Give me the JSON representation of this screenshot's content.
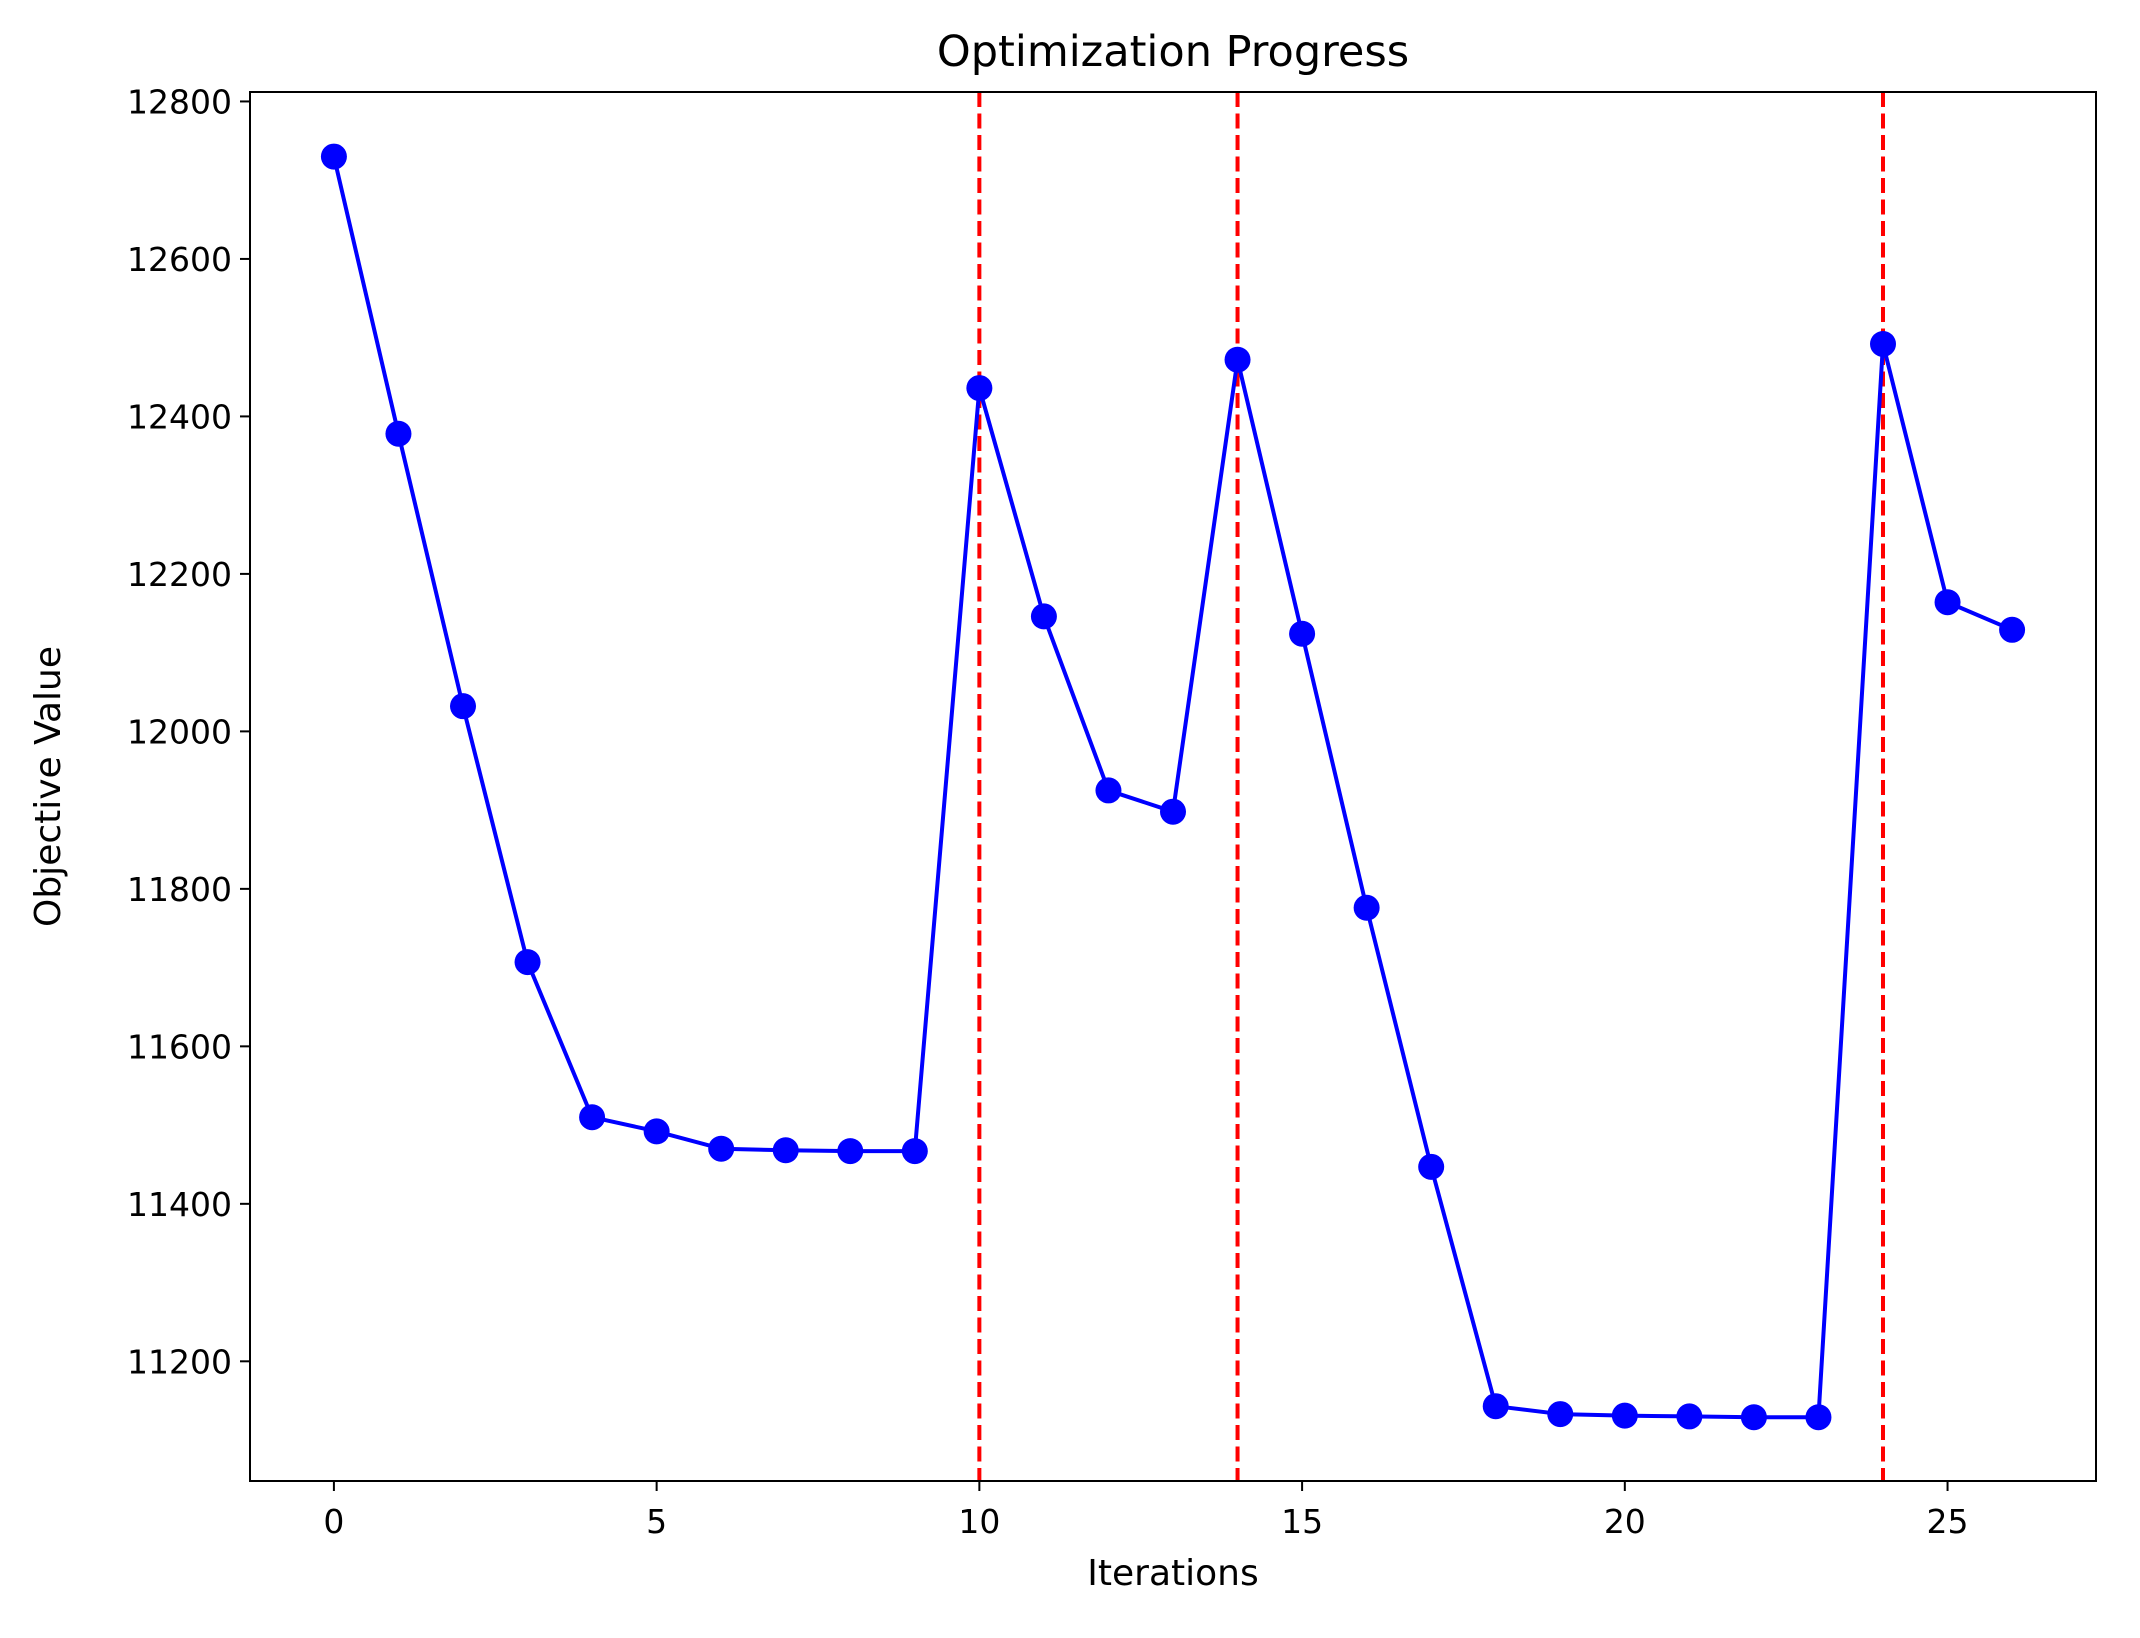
{
  "chart_data": {
    "type": "line",
    "title": "Optimization Progress",
    "xlabel": "Iterations",
    "ylabel": "Objective Value",
    "xlim": [
      -1.3,
      27.3
    ],
    "ylim": [
      11048,
      12812
    ],
    "xticks": [
      0,
      5,
      10,
      15,
      20,
      25
    ],
    "xtick_labels": [
      "0",
      "5",
      "10",
      "15",
      "20",
      "25"
    ],
    "yticks": [
      11200,
      11400,
      11600,
      11800,
      12000,
      12200,
      12400,
      12600,
      12800
    ],
    "ytick_labels": [
      "11200",
      "11400",
      "11600",
      "11800",
      "12000",
      "12200",
      "12400",
      "12600",
      "12800"
    ],
    "grid": false,
    "series": [
      {
        "color": "#0000ff",
        "marker": "circle",
        "x": [
          0,
          1,
          2,
          3,
          4,
          5,
          6,
          7,
          8,
          9,
          10,
          11,
          12,
          13,
          14,
          15,
          16,
          17,
          18,
          19,
          20,
          21,
          22,
          23,
          24,
          25,
          26
        ],
        "y": [
          12730,
          12378,
          12032,
          11707,
          11510,
          11492,
          11470,
          11468,
          11467,
          11467,
          12436,
          12146,
          11925,
          11898,
          12472,
          12124,
          11776,
          11447,
          11143,
          11133,
          11131,
          11130,
          11129,
          11129,
          12492,
          12164,
          12129
        ]
      }
    ],
    "vlines": [
      {
        "x": 10,
        "color": "#ff0000",
        "style": "dashed"
      },
      {
        "x": 14,
        "color": "#ff0000",
        "style": "dashed"
      },
      {
        "x": 24,
        "color": "#ff0000",
        "style": "dashed"
      }
    ]
  }
}
